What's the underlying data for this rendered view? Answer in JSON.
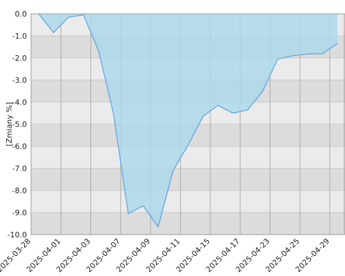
{
  "chart_data": {
    "type": "area",
    "y_label": "[Zmiany %]",
    "categories": [
      "2025-03-28",
      null,
      "2025-04-01",
      null,
      "2025-04-03",
      null,
      "2025-04-07",
      null,
      "2025-04-09",
      null,
      "2025-04-11",
      null,
      "2025-04-15",
      null,
      "2025-04-17",
      null,
      "2025-04-23",
      null,
      "2025-04-25",
      null,
      "2025-04-29"
    ],
    "values": [
      0,
      -0.85,
      -0.15,
      -0.05,
      -1.65,
      -4.5,
      -9.05,
      -8.7,
      -9.65,
      -7.1,
      -5.95,
      -4.65,
      -4.15,
      -4.5,
      -4.35,
      -3.5,
      -2.05,
      -1.9,
      -1.82,
      -1.8,
      -1.35
    ],
    "color": "#5aa0e0",
    "fill_color": "#aad8ec",
    "ylim": [
      -10,
      0
    ],
    "yticks": [
      {
        "value": 0,
        "label": "0.0"
      },
      {
        "value": -1,
        "label": "-1.0"
      },
      {
        "value": -2,
        "label": "-2.0"
      },
      {
        "value": -3,
        "label": "-3.0"
      },
      {
        "value": -4,
        "label": "-4.0"
      },
      {
        "value": -5,
        "label": "-5.0"
      },
      {
        "value": -6,
        "label": "-6.0"
      },
      {
        "value": -7,
        "label": "-7.0"
      },
      {
        "value": -8,
        "label": "-8.0"
      },
      {
        "value": -9,
        "label": "-9.0"
      },
      {
        "value": -10,
        "label": "-10.0"
      }
    ],
    "grid": true
  }
}
